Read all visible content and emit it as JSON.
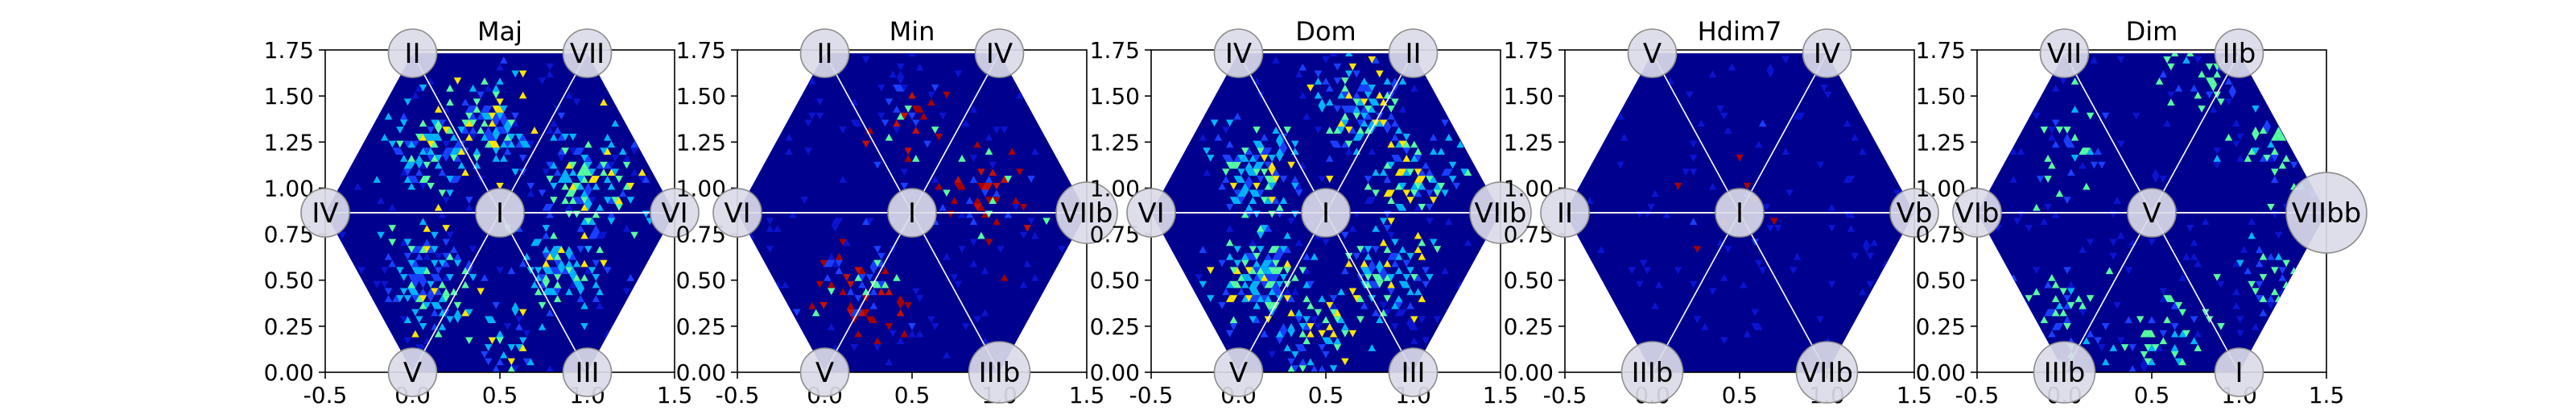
{
  "chart_data": [
    {
      "type": "heatmap",
      "title": "Maj",
      "xlim": [
        -0.5,
        1.5
      ],
      "ylim": [
        0.0,
        1.75
      ],
      "xticks": [
        "-0.5",
        "0.0",
        "0.5",
        "1.0",
        "1.5"
      ],
      "yticks": [
        "0.00",
        "0.25",
        "0.50",
        "0.75",
        "1.00",
        "1.25",
        "1.50",
        "1.75"
      ],
      "grid": false,
      "hexagon_vertices": [
        [
          0.0,
          0.0
        ],
        [
          1.0,
          0.0
        ],
        [
          1.5,
          0.866
        ],
        [
          1.0,
          1.732
        ],
        [
          0.0,
          1.732
        ],
        [
          -0.5,
          0.866
        ]
      ],
      "nodes": [
        {
          "label": "I",
          "x": 0.5,
          "y": 0.866
        },
        {
          "label": "II",
          "x": 0.0,
          "y": 1.732
        },
        {
          "label": "VII",
          "x": 1.0,
          "y": 1.732
        },
        {
          "label": "IV",
          "x": -0.5,
          "y": 0.866
        },
        {
          "label": "VI",
          "x": 1.5,
          "y": 0.866
        },
        {
          "label": "V",
          "x": 0.0,
          "y": 0.0
        },
        {
          "label": "III",
          "x": 1.0,
          "y": 0.0
        }
      ],
      "hotspots": [
        {
          "x": 0.1,
          "y": 1.2,
          "intensity": 0.8
        },
        {
          "x": 0.45,
          "y": 1.35,
          "intensity": 0.8
        },
        {
          "x": 1.0,
          "y": 1.05,
          "intensity": 0.8
        },
        {
          "x": 0.1,
          "y": 0.5,
          "intensity": 0.8
        },
        {
          "x": 0.85,
          "y": 0.55,
          "intensity": 0.7
        },
        {
          "x": 0.5,
          "y": 0.2,
          "intensity": 0.35
        }
      ],
      "hotspot_colors": [
        "#00b4ff",
        "#57ffa0",
        "#ffe600"
      ]
    },
    {
      "type": "heatmap",
      "title": "Min",
      "xlim": [
        -0.5,
        1.5
      ],
      "ylim": [
        0.0,
        1.75
      ],
      "xticks": [
        "-0.5",
        "0.0",
        "0.5",
        "1.0",
        "1.5"
      ],
      "yticks": [
        "0.00",
        "0.25",
        "0.50",
        "0.75",
        "1.00",
        "1.25",
        "1.50",
        "1.75"
      ],
      "grid": false,
      "hexagon_vertices": [
        [
          0.0,
          0.0
        ],
        [
          1.0,
          0.0
        ],
        [
          1.5,
          0.866
        ],
        [
          1.0,
          1.732
        ],
        [
          0.0,
          1.732
        ],
        [
          -0.5,
          0.866
        ]
      ],
      "nodes": [
        {
          "label": "I",
          "x": 0.5,
          "y": 0.866
        },
        {
          "label": "II",
          "x": 0.0,
          "y": 1.732
        },
        {
          "label": "IV",
          "x": 1.0,
          "y": 1.732
        },
        {
          "label": "VI",
          "x": -0.5,
          "y": 0.866
        },
        {
          "label": "VIIb",
          "x": 1.5,
          "y": 0.866
        },
        {
          "label": "V",
          "x": 0.0,
          "y": 0.0
        },
        {
          "label": "IIIb",
          "x": 1.0,
          "y": 0.0
        }
      ],
      "hotspots": [
        {
          "x": 0.95,
          "y": 0.95,
          "intensity": 0.5
        },
        {
          "x": 0.25,
          "y": 0.45,
          "intensity": 0.5
        },
        {
          "x": 0.5,
          "y": 1.35,
          "intensity": 0.25
        }
      ],
      "hotspot_colors": [
        "#a80000",
        "#c81000",
        "#57ffa0"
      ]
    },
    {
      "type": "heatmap",
      "title": "Dom",
      "xlim": [
        -0.5,
        1.5
      ],
      "ylim": [
        0.0,
        1.75
      ],
      "xticks": [
        "-0.5",
        "0.0",
        "0.5",
        "1.0",
        "1.5"
      ],
      "yticks": [
        "0.00",
        "0.25",
        "0.50",
        "0.75",
        "1.00",
        "1.25",
        "1.50",
        "1.75"
      ],
      "grid": false,
      "hexagon_vertices": [
        [
          0.0,
          0.0
        ],
        [
          1.0,
          0.0
        ],
        [
          1.5,
          0.866
        ],
        [
          1.0,
          1.732
        ],
        [
          0.0,
          1.732
        ],
        [
          -0.5,
          0.866
        ]
      ],
      "nodes": [
        {
          "label": "I",
          "x": 0.5,
          "y": 0.866
        },
        {
          "label": "IV",
          "x": 0.0,
          "y": 1.732
        },
        {
          "label": "II",
          "x": 1.0,
          "y": 1.732
        },
        {
          "label": "VI",
          "x": -0.5,
          "y": 0.866
        },
        {
          "label": "VIIb",
          "x": 1.5,
          "y": 0.866
        },
        {
          "label": "V",
          "x": 0.0,
          "y": 0.0
        },
        {
          "label": "III",
          "x": 1.0,
          "y": 0.0
        }
      ],
      "hotspots": [
        {
          "x": 0.1,
          "y": 1.1,
          "intensity": 0.85
        },
        {
          "x": 0.7,
          "y": 1.45,
          "intensity": 0.85
        },
        {
          "x": 1.0,
          "y": 1.1,
          "intensity": 0.6
        },
        {
          "x": 0.1,
          "y": 0.5,
          "intensity": 0.8
        },
        {
          "x": 0.85,
          "y": 0.55,
          "intensity": 0.7
        },
        {
          "x": 0.45,
          "y": 0.25,
          "intensity": 0.5
        }
      ],
      "hotspot_colors": [
        "#00b4ff",
        "#57ffa0",
        "#ffe600"
      ]
    },
    {
      "type": "heatmap",
      "title": "Hdim7",
      "xlim": [
        -0.5,
        1.5
      ],
      "ylim": [
        0.0,
        1.75
      ],
      "xticks": [
        "-0.5",
        "0.0",
        "0.5",
        "1.0",
        "1.5"
      ],
      "yticks": [
        "0.00",
        "0.25",
        "0.50",
        "0.75",
        "1.00",
        "1.25",
        "1.50",
        "1.75"
      ],
      "grid": false,
      "hexagon_vertices": [
        [
          0.0,
          0.0
        ],
        [
          1.0,
          0.0
        ],
        [
          1.5,
          0.866
        ],
        [
          1.0,
          1.732
        ],
        [
          0.0,
          1.732
        ],
        [
          -0.5,
          0.866
        ]
      ],
      "nodes": [
        {
          "label": "I",
          "x": 0.5,
          "y": 0.866
        },
        {
          "label": "V",
          "x": 0.0,
          "y": 1.732
        },
        {
          "label": "IV",
          "x": 1.0,
          "y": 1.732
        },
        {
          "label": "II",
          "x": -0.5,
          "y": 0.866
        },
        {
          "label": "Vb",
          "x": 1.5,
          "y": 0.866
        },
        {
          "label": "IIIb",
          "x": 0.0,
          "y": 0.0
        },
        {
          "label": "VIIb",
          "x": 1.0,
          "y": 0.0
        }
      ],
      "hotspots": [
        {
          "x": 0.5,
          "y": 0.9,
          "intensity": 0.12
        }
      ],
      "hotspot_colors": [
        "#a80000",
        "#a80000",
        "#a80000"
      ]
    },
    {
      "type": "heatmap",
      "title": "Dim",
      "xlim": [
        -0.5,
        1.5
      ],
      "ylim": [
        0.0,
        1.75
      ],
      "xticks": [
        "-0.5",
        "0.0",
        "0.5",
        "1.0",
        "1.5"
      ],
      "yticks": [
        "0.00",
        "0.25",
        "0.50",
        "0.75",
        "1.00",
        "1.25",
        "1.50",
        "1.75"
      ],
      "grid": false,
      "hexagon_vertices": [
        [
          0.0,
          0.0
        ],
        [
          1.0,
          0.0
        ],
        [
          1.5,
          0.866
        ],
        [
          1.0,
          1.732
        ],
        [
          0.0,
          1.732
        ],
        [
          -0.5,
          0.866
        ]
      ],
      "nodes": [
        {
          "label": "V",
          "x": 0.5,
          "y": 0.866
        },
        {
          "label": "VII",
          "x": 0.0,
          "y": 1.732
        },
        {
          "label": "IIb",
          "x": 1.0,
          "y": 1.732
        },
        {
          "label": "VIb",
          "x": -0.5,
          "y": 0.866
        },
        {
          "label": "VIIbb",
          "x": 1.5,
          "y": 0.866
        },
        {
          "label": "IIIb",
          "x": 0.0,
          "y": 0.0
        },
        {
          "label": "I",
          "x": 1.0,
          "y": 0.0
        }
      ],
      "hotspots": [
        {
          "x": 0.0,
          "y": 1.2,
          "intensity": 0.3
        },
        {
          "x": 1.25,
          "y": 1.2,
          "intensity": 0.3
        },
        {
          "x": 1.2,
          "y": 0.45,
          "intensity": 0.3
        },
        {
          "x": 0.0,
          "y": 0.3,
          "intensity": 0.3
        },
        {
          "x": 0.6,
          "y": 0.1,
          "intensity": 0.3
        },
        {
          "x": 0.85,
          "y": 1.6,
          "intensity": 0.3
        }
      ],
      "hotspot_colors": [
        "#57ffa0",
        "#57ffa0",
        "#00b4ff"
      ]
    }
  ],
  "colors": {
    "background": "#00008f",
    "triangle_edge": "#1a1aa6",
    "divider_line": "#ffffff",
    "node_fill": "#dadbe8",
    "node_stroke": "#8c8c8c"
  }
}
